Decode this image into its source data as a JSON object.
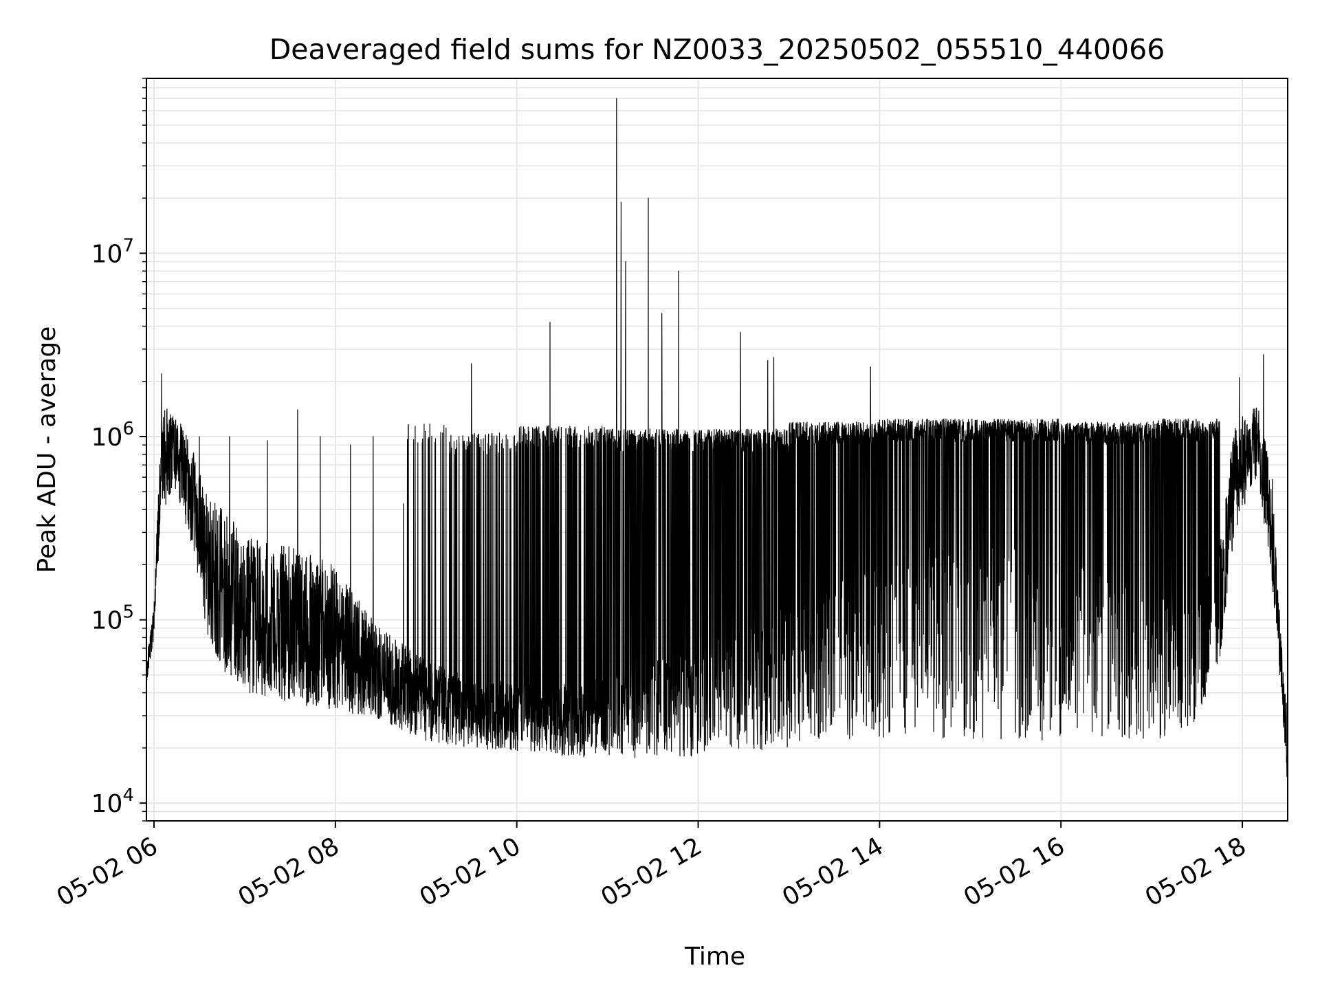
{
  "chart_data": {
    "type": "line",
    "title": "Deaveraged field sums for NZ0033_20250502_055510_440066",
    "xlabel": "Time",
    "ylabel": "Peak ADU - average",
    "yscale": "log",
    "xlim": [
      "05-02 05:55",
      "05-02 18:30"
    ],
    "ylim": [
      8000,
      90000000
    ],
    "grid": true,
    "line_color": "#000000",
    "grid_color": "#e6e6e6",
    "x_ticks": [
      {
        "t": "05-02 06:00",
        "label": "05-02 06"
      },
      {
        "t": "05-02 08:00",
        "label": "05-02 08"
      },
      {
        "t": "05-02 10:00",
        "label": "05-02 10"
      },
      {
        "t": "05-02 12:00",
        "label": "05-02 12"
      },
      {
        "t": "05-02 14:00",
        "label": "05-02 14"
      },
      {
        "t": "05-02 16:00",
        "label": "05-02 16"
      },
      {
        "t": "05-02 18:00",
        "label": "05-02 18"
      }
    ],
    "y_ticks": [
      {
        "value": 10000,
        "base": "10",
        "exp": "4"
      },
      {
        "value": 100000,
        "base": "10",
        "exp": "5"
      },
      {
        "value": 1000000,
        "base": "10",
        "exp": "6"
      },
      {
        "value": 10000000,
        "base": "10",
        "exp": "7"
      }
    ],
    "series": [
      {
        "envelope": [
          {
            "t": "05-02 05:55",
            "low": 45000,
            "high": 60000
          },
          {
            "t": "05-02 06:00",
            "low": 80000,
            "high": 120000
          },
          {
            "t": "05-02 06:05",
            "low": 400000,
            "high": 1500000
          },
          {
            "t": "05-02 06:15",
            "low": 500000,
            "high": 1300000
          },
          {
            "t": "05-02 06:25",
            "low": 250000,
            "high": 900000
          },
          {
            "t": "05-02 06:35",
            "low": 80000,
            "high": 500000
          },
          {
            "t": "05-02 06:45",
            "low": 50000,
            "high": 400000
          },
          {
            "t": "05-02 07:00",
            "low": 40000,
            "high": 300000
          },
          {
            "t": "05-02 07:30",
            "low": 35000,
            "high": 250000
          },
          {
            "t": "05-02 08:00",
            "low": 32000,
            "high": 200000
          },
          {
            "t": "05-02 08:30",
            "low": 28000,
            "high": 90000
          },
          {
            "t": "05-02 09:00",
            "low": 22000,
            "high": 60000
          },
          {
            "t": "05-02 09:30",
            "low": 20000,
            "high": 50000
          },
          {
            "t": "05-02 10:00",
            "low": 19000,
            "high": 45000
          },
          {
            "t": "05-02 10:30",
            "low": 18000,
            "high": 45000
          },
          {
            "t": "05-02 11:00",
            "low": 17000,
            "high": 50000
          },
          {
            "t": "05-02 11:30",
            "low": 18000,
            "high": 60000
          },
          {
            "t": "05-02 12:00",
            "low": 18000,
            "high": 70000
          },
          {
            "t": "05-02 12:30",
            "low": 19000,
            "high": 90000
          },
          {
            "t": "05-02 13:00",
            "low": 20000,
            "high": 120000
          },
          {
            "t": "05-02 13:30",
            "low": 21000,
            "high": 160000
          },
          {
            "t": "05-02 14:00",
            "low": 22000,
            "high": 200000
          },
          {
            "t": "05-02 14:30",
            "low": 23000,
            "high": 250000
          },
          {
            "t": "05-02 15:00",
            "low": 22000,
            "high": 280000
          },
          {
            "t": "05-02 15:30",
            "low": 22000,
            "high": 260000
          },
          {
            "t": "05-02 16:00",
            "low": 22000,
            "high": 220000
          },
          {
            "t": "05-02 16:30",
            "low": 22000,
            "high": 180000
          },
          {
            "t": "05-02 17:00",
            "low": 22000,
            "high": 150000
          },
          {
            "t": "05-02 17:30",
            "low": 25000,
            "high": 120000
          },
          {
            "t": "05-02 17:45",
            "low": 60000,
            "high": 250000
          },
          {
            "t": "05-02 17:55",
            "low": 300000,
            "high": 1200000
          },
          {
            "t": "05-02 18:10",
            "low": 600000,
            "high": 1500000
          },
          {
            "t": "05-02 18:20",
            "low": 150000,
            "high": 600000
          },
          {
            "t": "05-02 18:25",
            "low": 45000,
            "high": 100000
          },
          {
            "t": "05-02 18:30",
            "low": 12000,
            "high": 30000
          }
        ],
        "oscillation": [
          {
            "start": "05-02 08:45",
            "end": "05-02 09:15",
            "high": 1200000,
            "density": 0.08
          },
          {
            "start": "05-02 09:15",
            "end": "05-02 10:00",
            "high": 1050000,
            "density": 0.18
          },
          {
            "start": "05-02 10:00",
            "end": "05-02 11:00",
            "high": 1150000,
            "density": 0.32
          },
          {
            "start": "05-02 11:00",
            "end": "05-02 12:00",
            "high": 1100000,
            "density": 0.5
          },
          {
            "start": "05-02 12:00",
            "end": "05-02 13:00",
            "high": 1100000,
            "density": 0.6
          },
          {
            "start": "05-02 13:00",
            "end": "05-02 14:00",
            "high": 1200000,
            "density": 0.65
          },
          {
            "start": "05-02 14:00",
            "end": "05-02 15:00",
            "high": 1250000,
            "density": 0.7
          },
          {
            "start": "05-02 15:00",
            "end": "05-02 16:00",
            "high": 1250000,
            "density": 0.7
          },
          {
            "start": "05-02 16:00",
            "end": "05-02 17:00",
            "high": 1200000,
            "density": 0.7
          },
          {
            "start": "05-02 17:00",
            "end": "05-02 17:45",
            "high": 1250000,
            "density": 0.65
          }
        ],
        "spikes": [
          {
            "t": "05-02 06:05",
            "value": 2200000
          },
          {
            "t": "05-02 06:30",
            "value": 1000000
          },
          {
            "t": "05-02 06:50",
            "value": 1000000
          },
          {
            "t": "05-02 07:15",
            "value": 950000
          },
          {
            "t": "05-02 07:35",
            "value": 1400000
          },
          {
            "t": "05-02 07:50",
            "value": 1000000
          },
          {
            "t": "05-02 08:10",
            "value": 900000
          },
          {
            "t": "05-02 08:25",
            "value": 1000000
          },
          {
            "t": "05-02 08:45",
            "value": 430000
          },
          {
            "t": "05-02 09:30",
            "value": 2500000
          },
          {
            "t": "05-02 10:22",
            "value": 4200000
          },
          {
            "t": "05-02 11:06",
            "value": 70000000
          },
          {
            "t": "05-02 11:09",
            "value": 19000000
          },
          {
            "t": "05-02 11:12",
            "value": 9000000
          },
          {
            "t": "05-02 11:27",
            "value": 20000000
          },
          {
            "t": "05-02 11:36",
            "value": 4700000
          },
          {
            "t": "05-02 11:47",
            "value": 8000000
          },
          {
            "t": "05-02 12:28",
            "value": 3700000
          },
          {
            "t": "05-02 12:46",
            "value": 2600000
          },
          {
            "t": "05-02 12:50",
            "value": 2700000
          },
          {
            "t": "05-02 13:54",
            "value": 2400000
          },
          {
            "t": "05-02 17:58",
            "value": 2100000
          },
          {
            "t": "05-02 18:14",
            "value": 2800000
          }
        ]
      }
    ]
  }
}
